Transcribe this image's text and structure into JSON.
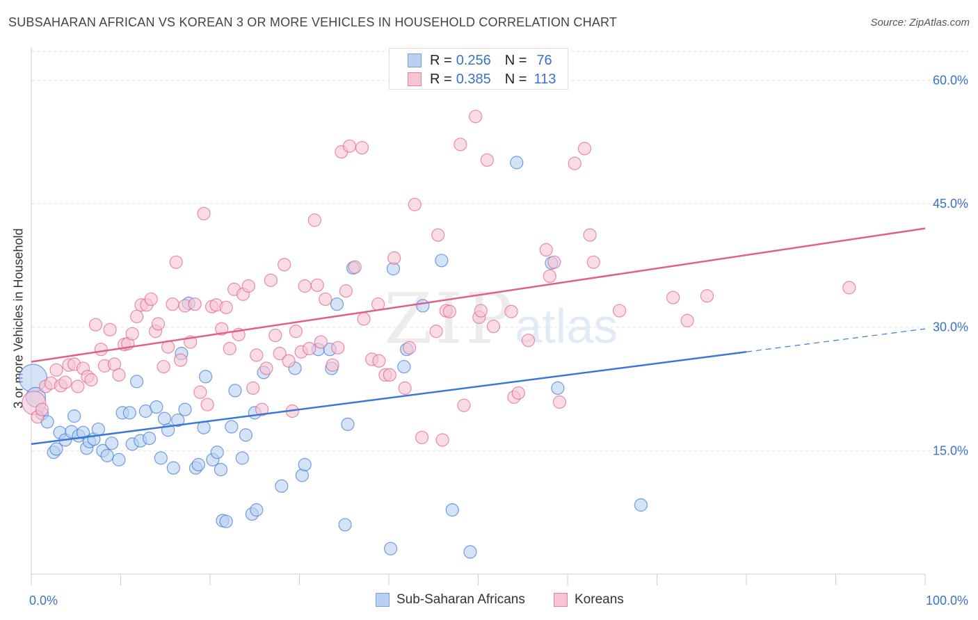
{
  "header": {
    "title": "SUBSAHARAN AFRICAN VS KOREAN 3 OR MORE VEHICLES IN HOUSEHOLD CORRELATION CHART",
    "source": "Source: ZipAtlas.com"
  },
  "watermark": {
    "zip": "ZIP",
    "atlas": "atlas"
  },
  "legend": {
    "rows": [
      {
        "r_label": "R =",
        "r_value": "0.256",
        "n_label": "N =",
        "n_value": "76",
        "color": "#6fa0e0",
        "fill": "#b9d0f2"
      },
      {
        "r_label": "R =",
        "r_value": "0.385",
        "n_label": "N =",
        "n_value": "113",
        "color": "#e87ea0",
        "fill": "#f7c4d4"
      }
    ]
  },
  "bottom_legend": {
    "items": [
      {
        "label": "Sub-Saharan Africans",
        "color": "#6fa0e0",
        "fill": "#b9d0f2"
      },
      {
        "label": "Koreans",
        "color": "#e87ea0",
        "fill": "#f7c4d4"
      }
    ]
  },
  "chart_data": {
    "type": "scatter",
    "title": "SUBSAHARAN AFRICAN VS KOREAN 3 OR MORE VEHICLES IN HOUSEHOLD CORRELATION CHART",
    "xlabel": "",
    "ylabel": "3 or more Vehicles in Household",
    "xlim": [
      0,
      100
    ],
    "ylim": [
      0,
      63.5
    ],
    "x_tick_labels": [
      "0.0%",
      "100.0%"
    ],
    "y_ticks": [
      15,
      30,
      45,
      60
    ],
    "y_tick_labels": [
      "15.0%",
      "30.0%",
      "45.0%",
      "60.0%"
    ],
    "grid": true,
    "legend_placement": "top-center",
    "series": [
      {
        "name": "Sub-Saharan Africans",
        "color": "#3a78d4",
        "fill": "#b9d0f2",
        "trend": {
          "x": [
            0,
            80,
            100
          ],
          "y": [
            15.8,
            27.0,
            29.8
          ],
          "solid_until": 80
        },
        "points": [
          [
            0.2,
            23.8
          ],
          [
            0.5,
            21.5
          ],
          [
            1.2,
            19.5
          ],
          [
            1.8,
            18.5
          ],
          [
            2.5,
            14.8
          ],
          [
            2.8,
            15.2
          ],
          [
            3.2,
            17.2
          ],
          [
            3.8,
            16.3
          ],
          [
            4.5,
            17.3
          ],
          [
            4.8,
            19.2
          ],
          [
            5.3,
            16.8
          ],
          [
            5.8,
            17.2
          ],
          [
            6.2,
            15.3
          ],
          [
            6.5,
            16.1
          ],
          [
            7.0,
            16.4
          ],
          [
            7.5,
            17.6
          ],
          [
            8.0,
            15.0
          ],
          [
            8.5,
            14.4
          ],
          [
            9.0,
            15.9
          ],
          [
            9.8,
            13.9
          ],
          [
            10.2,
            19.6
          ],
          [
            11.0,
            19.6
          ],
          [
            11.3,
            15.8
          ],
          [
            11.8,
            23.4
          ],
          [
            12.2,
            16.2
          ],
          [
            12.8,
            19.8
          ],
          [
            13.2,
            16.5
          ],
          [
            14.0,
            20.3
          ],
          [
            14.5,
            14.1
          ],
          [
            14.9,
            18.9
          ],
          [
            15.3,
            17.5
          ],
          [
            15.9,
            12.9
          ],
          [
            16.4,
            18.7
          ],
          [
            16.8,
            26.8
          ],
          [
            17.2,
            20.0
          ],
          [
            17.6,
            32.9
          ],
          [
            18.4,
            12.9
          ],
          [
            18.7,
            13.3
          ],
          [
            19.3,
            17.8
          ],
          [
            19.5,
            24.0
          ],
          [
            20.3,
            13.9
          ],
          [
            20.8,
            14.8
          ],
          [
            21.2,
            12.7
          ],
          [
            21.4,
            6.5
          ],
          [
            21.8,
            6.4
          ],
          [
            22.4,
            17.9
          ],
          [
            22.8,
            22.3
          ],
          [
            23.6,
            14.1
          ],
          [
            24.0,
            16.9
          ],
          [
            24.7,
            7.3
          ],
          [
            25.0,
            19.6
          ],
          [
            25.2,
            7.8
          ],
          [
            26.0,
            24.5
          ],
          [
            28.0,
            10.7
          ],
          [
            29.5,
            25.0
          ],
          [
            30.3,
            12.0
          ],
          [
            30.6,
            13.3
          ],
          [
            32.1,
            27.3
          ],
          [
            33.4,
            27.3
          ],
          [
            33.6,
            25.0
          ],
          [
            34.2,
            32.8
          ],
          [
            35.1,
            6.0
          ],
          [
            35.4,
            18.2
          ],
          [
            36.0,
            37.2
          ],
          [
            40.2,
            3.1
          ],
          [
            40.5,
            37.1
          ],
          [
            41.7,
            25.2
          ],
          [
            42.0,
            27.3
          ],
          [
            43.8,
            32.6
          ],
          [
            45.9,
            38.1
          ],
          [
            47.1,
            7.8
          ],
          [
            49.1,
            2.7
          ],
          [
            54.3,
            50.0
          ],
          [
            58.2,
            37.8
          ],
          [
            58.9,
            22.6
          ],
          [
            68.2,
            8.4
          ]
        ]
      },
      {
        "name": "Koreans",
        "color": "#e0608a",
        "fill": "#f7c4d4",
        "trend": {
          "x": [
            0,
            100
          ],
          "y": [
            25.8,
            42.0
          ]
        },
        "points": [
          [
            0.3,
            20.8
          ],
          [
            0.7,
            19.1
          ],
          [
            1.2,
            20.0
          ],
          [
            1.6,
            22.8
          ],
          [
            2.2,
            23.2
          ],
          [
            2.8,
            24.8
          ],
          [
            3.3,
            22.9
          ],
          [
            3.8,
            23.3
          ],
          [
            4.2,
            25.4
          ],
          [
            4.8,
            25.5
          ],
          [
            5.2,
            22.8
          ],
          [
            5.8,
            25.0
          ],
          [
            6.3,
            24.0
          ],
          [
            6.7,
            23.6
          ],
          [
            7.2,
            30.3
          ],
          [
            7.8,
            27.3
          ],
          [
            8.2,
            25.3
          ],
          [
            8.8,
            29.7
          ],
          [
            9.3,
            25.5
          ],
          [
            9.8,
            24.2
          ],
          [
            10.4,
            27.9
          ],
          [
            10.8,
            28.0
          ],
          [
            11.3,
            29.2
          ],
          [
            11.8,
            31.3
          ],
          [
            12.3,
            32.7
          ],
          [
            12.9,
            32.7
          ],
          [
            13.4,
            33.4
          ],
          [
            13.9,
            29.5
          ],
          [
            14.2,
            30.4
          ],
          [
            14.8,
            25.2
          ],
          [
            15.3,
            27.6
          ],
          [
            15.8,
            32.8
          ],
          [
            16.2,
            37.9
          ],
          [
            16.7,
            26.0
          ],
          [
            17.2,
            32.6
          ],
          [
            17.8,
            28.2
          ],
          [
            18.3,
            32.8
          ],
          [
            18.9,
            22.1
          ],
          [
            19.3,
            43.8
          ],
          [
            19.7,
            20.6
          ],
          [
            20.2,
            32.5
          ],
          [
            20.7,
            32.7
          ],
          [
            21.3,
            29.8
          ],
          [
            21.8,
            32.4
          ],
          [
            22.2,
            27.4
          ],
          [
            22.7,
            34.6
          ],
          [
            23.2,
            29.1
          ],
          [
            23.7,
            34.0
          ],
          [
            24.3,
            35.0
          ],
          [
            24.8,
            22.6
          ],
          [
            25.2,
            26.6
          ],
          [
            25.8,
            20.0
          ],
          [
            26.3,
            25.0
          ],
          [
            26.8,
            35.7
          ],
          [
            27.3,
            29.0
          ],
          [
            27.8,
            26.8
          ],
          [
            28.3,
            37.6
          ],
          [
            28.8,
            25.9
          ],
          [
            29.2,
            19.8
          ],
          [
            29.6,
            29.5
          ],
          [
            30.2,
            27.0
          ],
          [
            30.6,
            35.0
          ],
          [
            31.1,
            27.4
          ],
          [
            31.7,
            43.0
          ],
          [
            32.0,
            35.1
          ],
          [
            32.4,
            28.2
          ],
          [
            32.9,
            33.4
          ],
          [
            33.7,
            25.4
          ],
          [
            34.3,
            27.5
          ],
          [
            34.7,
            51.3
          ],
          [
            35.2,
            34.4
          ],
          [
            35.6,
            52.0
          ],
          [
            36.2,
            37.3
          ],
          [
            37.0,
            51.8
          ],
          [
            37.2,
            31.0
          ],
          [
            38.1,
            26.1
          ],
          [
            38.8,
            32.8
          ],
          [
            38.9,
            25.9
          ],
          [
            39.6,
            24.2
          ],
          [
            40.1,
            24.2
          ],
          [
            40.6,
            38.4
          ],
          [
            41.8,
            22.6
          ],
          [
            42.3,
            27.5
          ],
          [
            42.9,
            44.9
          ],
          [
            43.7,
            16.6
          ],
          [
            45.3,
            29.5
          ],
          [
            45.5,
            41.2
          ],
          [
            46.0,
            16.3
          ],
          [
            46.4,
            32.0
          ],
          [
            46.8,
            31.9
          ],
          [
            48.0,
            52.2
          ],
          [
            48.4,
            20.5
          ],
          [
            49.7,
            55.6
          ],
          [
            50.1,
            31.2
          ],
          [
            50.3,
            32.0
          ],
          [
            51.0,
            50.3
          ],
          [
            51.7,
            30.1
          ],
          [
            53.7,
            31.9
          ],
          [
            54.0,
            21.5
          ],
          [
            54.5,
            22.0
          ],
          [
            55.6,
            28.4
          ],
          [
            57.6,
            39.4
          ],
          [
            58.0,
            36.2
          ],
          [
            58.5,
            37.9
          ],
          [
            59.1,
            20.9
          ],
          [
            60.8,
            49.9
          ],
          [
            61.9,
            51.7
          ],
          [
            62.5,
            41.2
          ],
          [
            62.9,
            37.9
          ],
          [
            65.8,
            32.0
          ],
          [
            71.8,
            33.6
          ],
          [
            73.4,
            30.8
          ],
          [
            75.6,
            33.8
          ],
          [
            91.5,
            34.8
          ]
        ]
      }
    ]
  }
}
